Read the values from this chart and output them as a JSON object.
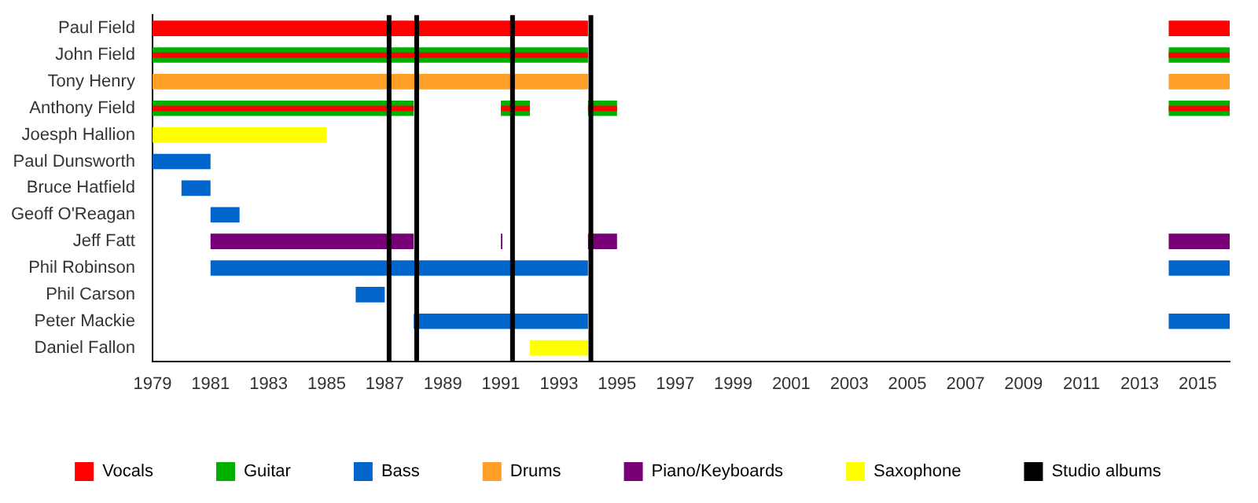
{
  "chart_data": {
    "type": "bar",
    "orientation": "horizontal",
    "categories": [
      "Paul Field",
      "John Field",
      "Tony Henry",
      "Anthony Field",
      "Joesph Hallion",
      "Paul Dunsworth",
      "Bruce Hatfield",
      "Geoff O'Reagan",
      "Jeff Fatt",
      "Phil Robinson",
      "Phil Carson",
      "Peter Mackie",
      "Daniel Fallon"
    ],
    "series": [
      {
        "name": "Vocals",
        "color": "#ff0000",
        "values": [
          15,
          null,
          null,
          null,
          null,
          null,
          null,
          null,
          null,
          null,
          null,
          null,
          null
        ],
        "base": [
          1979,
          null,
          null,
          null,
          null,
          null,
          null,
          null,
          null,
          null,
          null,
          null,
          null
        ]
      },
      {
        "name": "Guitar",
        "color": "#00b000",
        "values": [
          null,
          15,
          null,
          9,
          null,
          null,
          null,
          null,
          null,
          null,
          null,
          null,
          null
        ],
        "base": [
          null,
          1979,
          null,
          1979,
          null,
          null,
          null,
          null,
          null,
          null,
          null,
          null,
          null
        ]
      },
      {
        "color": "#ff0000",
        "values": [
          null,
          15,
          null,
          9,
          null,
          null,
          null,
          null,
          null,
          null,
          null,
          null,
          null
        ],
        "base": [
          null,
          1979,
          null,
          1979,
          null,
          null,
          null,
          null,
          null,
          null,
          null,
          null,
          null
        ]
      },
      {
        "name": "Bass",
        "color": "#0066cc",
        "values": [
          null,
          null,
          null,
          null,
          null,
          2,
          1,
          1,
          null,
          13,
          1,
          6,
          null
        ],
        "base": [
          null,
          null,
          null,
          null,
          null,
          1979,
          1980,
          1981,
          null,
          1981,
          1986,
          1988,
          null
        ]
      },
      {
        "name": "Drums",
        "color": "#ff9f28",
        "values": [
          null,
          null,
          15,
          null,
          null,
          null,
          null,
          null,
          null,
          null,
          null,
          null,
          null
        ],
        "base": [
          null,
          null,
          1979,
          null,
          null,
          null,
          null,
          null,
          null,
          null,
          null,
          null,
          null
        ]
      },
      {
        "name": "Piano/Keyboards",
        "color": "#770077",
        "values": [
          null,
          null,
          null,
          null,
          null,
          null,
          null,
          null,
          7,
          null,
          null,
          null,
          null
        ],
        "base": [
          null,
          null,
          null,
          null,
          null,
          null,
          null,
          null,
          1981,
          null,
          null,
          null,
          null
        ]
      },
      {
        "name": "Saxophone",
        "color": "#ffff00",
        "values": [
          null,
          null,
          null,
          null,
          6,
          null,
          null,
          null,
          null,
          null,
          null,
          null,
          2
        ],
        "base": [
          null,
          null,
          null,
          null,
          1979,
          null,
          null,
          null,
          null,
          null,
          null,
          null,
          1992
        ]
      },
      {
        "color": "#00b000",
        "values": [
          null,
          null,
          null,
          1,
          null,
          null,
          null,
          null,
          null,
          null,
          null,
          null,
          null
        ],
        "base": [
          null,
          null,
          null,
          1991,
          null,
          null,
          null,
          null,
          null,
          null,
          null,
          null,
          null
        ]
      },
      {
        "color": "#ff0000",
        "values": [
          null,
          null,
          null,
          1,
          null,
          null,
          null,
          null,
          null,
          null,
          null,
          null,
          null
        ],
        "base": [
          null,
          null,
          null,
          1991,
          null,
          null,
          null,
          null,
          null,
          null,
          null,
          null,
          null
        ]
      },
      {
        "color": "#770077",
        "values": [
          null,
          null,
          null,
          null,
          null,
          null,
          null,
          null,
          0.05,
          null,
          null,
          null,
          null
        ],
        "base": [
          null,
          null,
          null,
          null,
          null,
          null,
          null,
          null,
          1991,
          null,
          null,
          null,
          null
        ]
      },
      {
        "color": "#00b000",
        "values": [
          null,
          null,
          null,
          1,
          null,
          null,
          null,
          null,
          null,
          null,
          null,
          null,
          null
        ],
        "base": [
          null,
          null,
          null,
          1994,
          null,
          null,
          null,
          null,
          null,
          null,
          null,
          null,
          null
        ]
      },
      {
        "color": "#ff0000",
        "values": [
          null,
          null,
          null,
          1,
          null,
          null,
          null,
          null,
          null,
          null,
          null,
          null,
          null
        ],
        "base": [
          null,
          null,
          null,
          1994,
          null,
          null,
          null,
          null,
          null,
          null,
          null,
          null,
          null
        ]
      },
      {
        "color": "#770077",
        "values": [
          null,
          null,
          null,
          null,
          null,
          null,
          null,
          null,
          1,
          null,
          null,
          null,
          null
        ],
        "base": [
          null,
          null,
          null,
          null,
          null,
          null,
          null,
          null,
          1994,
          null,
          null,
          null,
          null
        ]
      },
      {
        "color": "#ff0000",
        "values": [
          2.1,
          null,
          null,
          null,
          null,
          null,
          null,
          null,
          null,
          null,
          null,
          null,
          null
        ],
        "base": [
          2014,
          null,
          null,
          null,
          null,
          null,
          null,
          null,
          null,
          null,
          null,
          null,
          null
        ]
      },
      {
        "color": "#00b000",
        "values": [
          null,
          2.1,
          null,
          2.1,
          null,
          null,
          null,
          null,
          null,
          null,
          null,
          null,
          null
        ],
        "base": [
          null,
          2014,
          null,
          2014,
          null,
          null,
          null,
          null,
          null,
          null,
          null,
          null,
          null
        ]
      },
      {
        "color": "#ff0000",
        "values": [
          null,
          2.1,
          null,
          2.1,
          null,
          null,
          null,
          null,
          null,
          null,
          null,
          null,
          null
        ],
        "base": [
          null,
          2014,
          null,
          2014,
          null,
          null,
          null,
          null,
          null,
          null,
          null,
          null,
          null
        ]
      },
      {
        "color": "#ff9f28",
        "values": [
          null,
          null,
          2.1,
          null,
          null,
          null,
          null,
          null,
          null,
          null,
          null,
          null,
          null
        ],
        "base": [
          null,
          null,
          2014,
          null,
          null,
          null,
          null,
          null,
          null,
          null,
          null,
          null,
          null
        ]
      },
      {
        "color": "#770077",
        "values": [
          null,
          null,
          null,
          null,
          null,
          null,
          null,
          null,
          2.1,
          null,
          null,
          null,
          null
        ],
        "base": [
          null,
          null,
          null,
          null,
          null,
          null,
          null,
          null,
          2014,
          null,
          null,
          null,
          null
        ]
      },
      {
        "color": "#0066cc",
        "values": [
          null,
          null,
          null,
          null,
          null,
          null,
          null,
          null,
          null,
          2.1,
          null,
          2.1,
          null
        ],
        "base": [
          null,
          null,
          null,
          null,
          null,
          null,
          null,
          null,
          null,
          2014,
          null,
          2014,
          null
        ]
      }
    ],
    "xlim": [
      1979,
      2016.1
    ],
    "xticks": [
      1979,
      1981,
      1983,
      1985,
      1987,
      1989,
      1991,
      1993,
      1995,
      1997,
      1999,
      2001,
      2003,
      2005,
      2007,
      2009,
      2011,
      2013,
      2015
    ],
    "ref_lines": [
      {
        "axis": "x",
        "value": 1987.15,
        "color": "#000000",
        "label": "Studio albums"
      },
      {
        "axis": "x",
        "value": 1988.1,
        "color": "#000000"
      },
      {
        "axis": "x",
        "value": 1991.4,
        "color": "#000000"
      },
      {
        "axis": "x",
        "value": 1994.1,
        "color": "#000000"
      }
    ],
    "grid": false,
    "legend": "bottom"
  }
}
